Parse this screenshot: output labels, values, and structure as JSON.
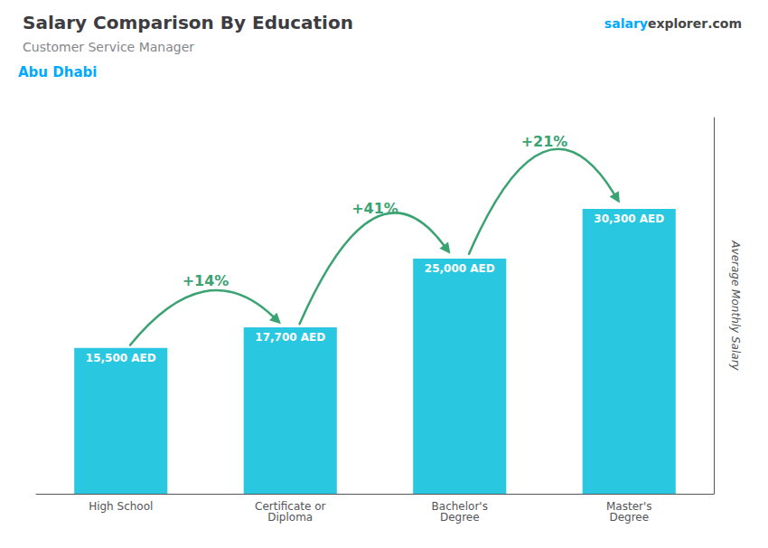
{
  "chart_data": {
    "type": "bar",
    "title": "Salary Comparison By Education",
    "subtitle": "Customer Service Manager",
    "y_label": "Average Monthly Salary",
    "categories": [
      "High School",
      "Certificate or\nDiploma",
      "Bachelor's\nDegree",
      "Master's\nDegree"
    ],
    "values": [
      15500,
      17700,
      25000,
      30300
    ],
    "value_labels": [
      "15,500 AED",
      "17,700 AED",
      "25,000 AED",
      "30,300 AED"
    ],
    "data_labels": true,
    "color": "#29c8e0",
    "ylim": [
      0,
      40000
    ],
    "yticks": [],
    "tick_labels": "x",
    "grid": false,
    "annotations": [
      {
        "text": "Abu Dhabi",
        "color": "#00aaff"
      },
      {
        "text": "salary",
        "color": "#00aaff"
      },
      {
        "text": "explorer"
      },
      {
        "text": ".com"
      },
      {
        "text": "+14%",
        "from": "High School",
        "to": "Certificate or\nDiploma"
      },
      {
        "text": "+41%",
        "from": "Certificate or\nDiploma",
        "to": "Bachelor's\nDegree"
      },
      {
        "text": "+21%",
        "from": "Bachelor's\nDegree",
        "to": "Master's\nDegree"
      }
    ]
  }
}
